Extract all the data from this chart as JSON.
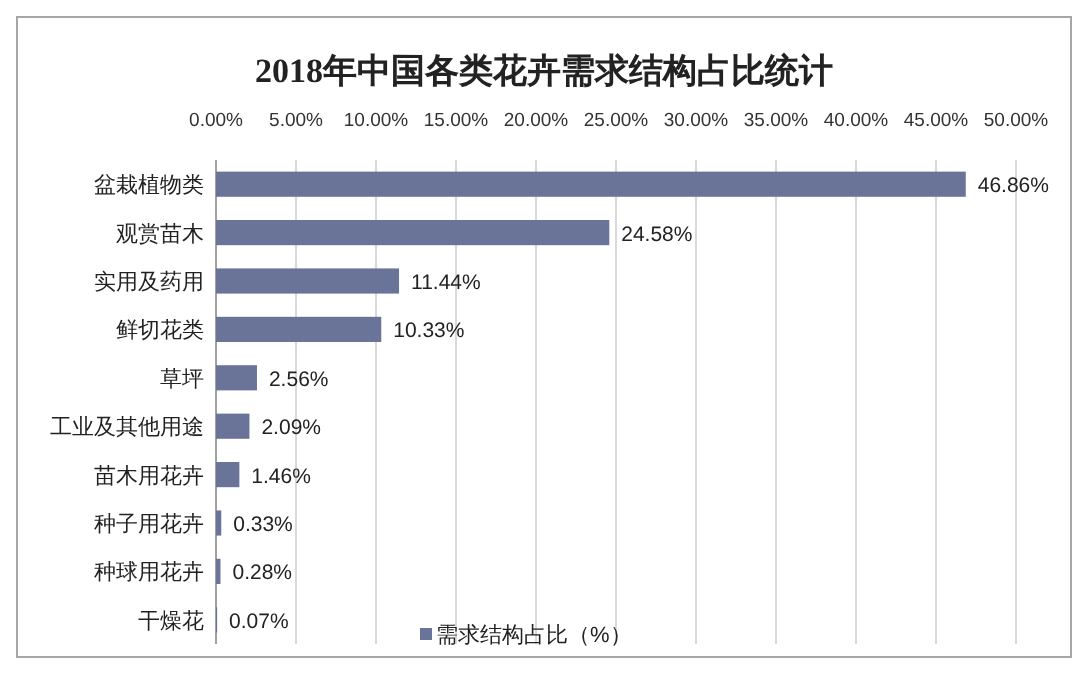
{
  "chart_data": {
    "type": "bar",
    "orientation": "horizontal",
    "title": "2018年中国各类花卉需求结构占比统计",
    "categories": [
      "盆栽植物类",
      "观赏苗木",
      "实用及药用",
      "鲜切花类",
      "草坪",
      "工业及其他用途",
      "苗木用花卉",
      "种子用花卉",
      "种球用花卉",
      "干燥花"
    ],
    "series": [
      {
        "name": "需求结构占比（%）",
        "color": "#6a7499",
        "values": [
          46.86,
          24.58,
          11.44,
          10.33,
          2.56,
          2.09,
          1.46,
          0.33,
          0.28,
          0.07
        ],
        "value_labels": [
          "46.86%",
          "24.58%",
          "11.44%",
          "10.33%",
          "2.56%",
          "2.09%",
          "1.46%",
          "0.33%",
          "0.28%",
          "0.07%"
        ]
      }
    ],
    "xlim": [
      0,
      50
    ],
    "xticks": [
      {
        "value": 0,
        "label": "0.00%"
      },
      {
        "value": 5,
        "label": "5.00%"
      },
      {
        "value": 10,
        "label": "10.00%"
      },
      {
        "value": 15,
        "label": "15.00%"
      },
      {
        "value": 20,
        "label": "20.00%"
      },
      {
        "value": 25,
        "label": "25.00%"
      },
      {
        "value": 30,
        "label": "30.00%"
      },
      {
        "value": 35,
        "label": "35.00%"
      },
      {
        "value": 40,
        "label": "40.00%"
      },
      {
        "value": 45,
        "label": "45.00%"
      },
      {
        "value": 50,
        "label": "50.00%"
      }
    ],
    "grid": "x",
    "legend": "bottom"
  }
}
